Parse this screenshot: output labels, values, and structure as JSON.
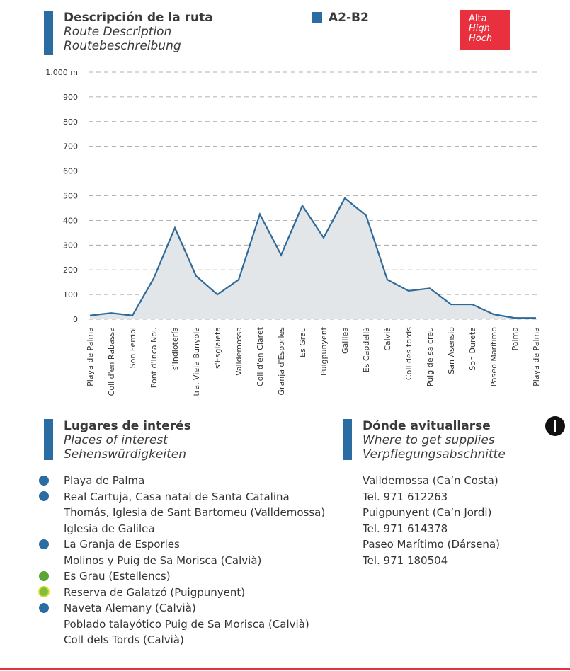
{
  "header": {
    "title": "Descripción de la ruta",
    "subtitle": "Route Description",
    "subtitle2": "Routebeschreibung",
    "code": "A2-B2",
    "difficulty": {
      "label": "Alta",
      "en": "High",
      "de": "Hoch"
    }
  },
  "chart_data": {
    "type": "area",
    "categories": [
      "Playa de Palma",
      "Coll d'en Rabassa",
      "Son Ferriol",
      "Pont d'Inca Nou",
      "s'Indiotería",
      "Ctra. Vieja Bunyola",
      "s'Esglaieta",
      "Valldemossa",
      "Coll d'en Claret",
      "Granja d'Esporles",
      "Es Grau",
      "Puigpunyent",
      "Galilea",
      "Es Capdellà",
      "Calvià",
      "Coll des tords",
      "Puig de sa creu",
      "San Asensio",
      "Son Dureta",
      "Paseo Marítimo",
      "Palma",
      "Playa de Palma"
    ],
    "values": [
      15,
      25,
      15,
      165,
      370,
      175,
      100,
      160,
      425,
      260,
      460,
      330,
      490,
      420,
      160,
      115,
      125,
      60,
      60,
      20,
      5,
      5
    ],
    "color": "#2f6a99",
    "fill": "#e3e6e9",
    "ylim": [
      0,
      1000
    ],
    "yticks": [
      0,
      100,
      200,
      300,
      400,
      500,
      600,
      700,
      800,
      900,
      {
        "value": 1000,
        "label": "1.000 m"
      }
    ],
    "grid": true
  },
  "places": {
    "title": "Lugares de interés",
    "en": "Places of interest",
    "de": "Sehenswürdigkeiten",
    "lines": [
      "Playa de Palma",
      "Real Cartuja, Casa natal de Santa Catalina",
      "Thomás, Iglesia de Sant Bartomeu (Valldemossa)",
      "Iglesia de Galilea",
      "La Granja de Esporles",
      "Molinos y Puig de Sa Morisca (Calvià)",
      "Es Grau (Estellencs)",
      "Reserva de Galatzó (Puigpunyent)",
      "Naveta Alemany (Calvià)",
      "Poblado talayótico Puig de Sa Morisca (Calvià)",
      "Coll dels Tords (Calvià)"
    ]
  },
  "supplies": {
    "title": "Dónde avituallarse",
    "en": "Where to get supplies",
    "de": "Verpflegungsabschnitte",
    "lines": [
      "Valldemossa (Ca’n Costa)",
      "Tel. 971 612263",
      "Puigpunyent (Ca’n Jordi)",
      "Tel. 971 614378",
      "Paseo Marítimo (Dársena)",
      "Tel. 971 180504"
    ]
  }
}
